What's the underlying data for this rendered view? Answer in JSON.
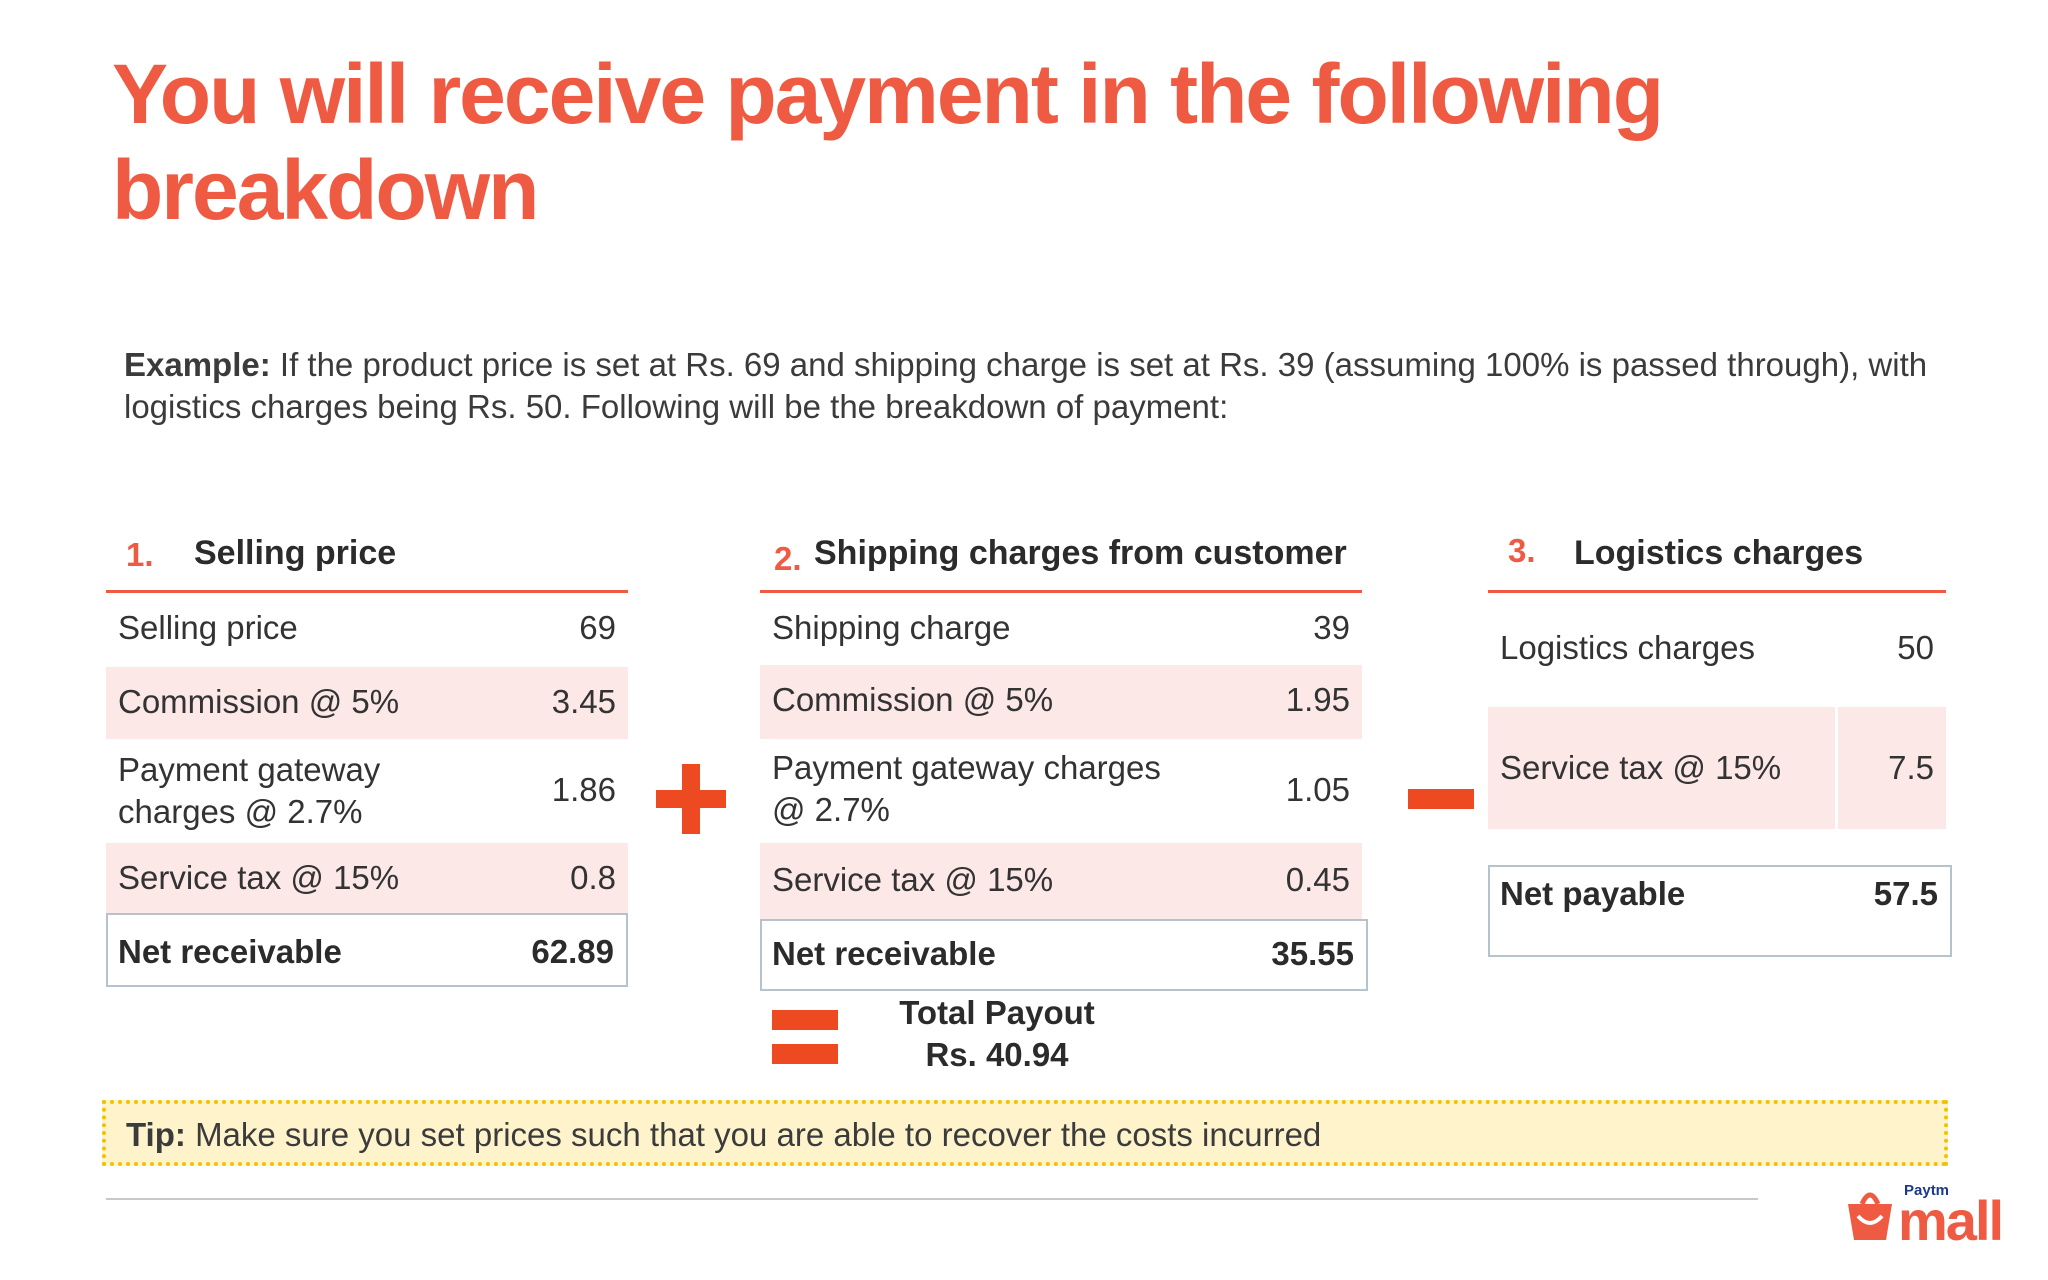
{
  "title": "You will receive payment in the following breakdown",
  "example": {
    "prefix": "Example:",
    "text": "If the product price is set at Rs. 69 and shipping charge is set at Rs. 39 (assuming 100% is passed through), with logistics charges being Rs. 50. Following will be the breakdown of payment:"
  },
  "sections": [
    {
      "number": "1.",
      "title": "Selling price",
      "rows": [
        {
          "label": "Selling price",
          "value": "69"
        },
        {
          "label": "Commission @ 5%",
          "value": "3.45"
        },
        {
          "label_line1": "Payment gateway",
          "label_line2": "charges @ 2.7%",
          "value": "1.86"
        },
        {
          "label": "Service tax @ 15%",
          "value": "0.8"
        }
      ],
      "net_label": "Net receivable",
      "net_value": "62.89"
    },
    {
      "number": "2.",
      "title": "Shipping charges from customer",
      "rows": [
        {
          "label": "Shipping charge",
          "value": "39"
        },
        {
          "label": "Commission @ 5%",
          "value": "1.95"
        },
        {
          "label_line1": "Payment gateway charges",
          "label_line2": "@ 2.7%",
          "value": "1.05"
        },
        {
          "label": "Service tax @ 15%",
          "value": "0.45"
        }
      ],
      "net_label": "Net receivable",
      "net_value": "35.55"
    },
    {
      "number": "3.",
      "title": "Logistics charges",
      "rows": [
        {
          "label": "Logistics charges",
          "value": "50"
        },
        {
          "label": "Service tax @ 15%",
          "value": "7.5"
        }
      ],
      "net_label": "Net payable",
      "net_value": "57.5"
    }
  ],
  "total": {
    "label": "Total Payout",
    "amount": "Rs. 40.94"
  },
  "tip": {
    "prefix": "Tip:",
    "text": "Make sure you set prices such that you are able to recover the costs incurred"
  },
  "logo": {
    "top_text": "Paytm",
    "main_text": "mall"
  },
  "colors": {
    "accent": "#ee5a42",
    "operator": "#ee4a22",
    "pink_row": "#fde8e8",
    "tip_bg": "#fff3cc",
    "tip_border": "#f0c200"
  }
}
